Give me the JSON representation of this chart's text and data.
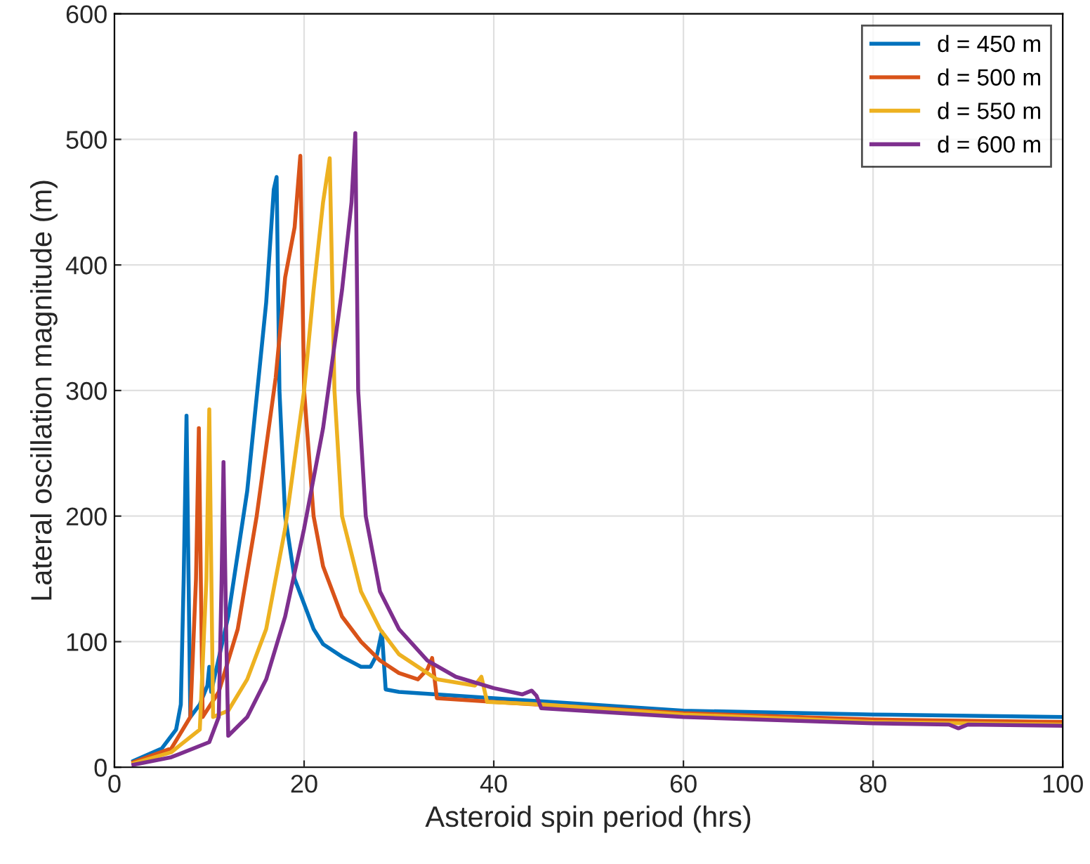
{
  "chart_data": {
    "type": "line",
    "xlabel": "Asteroid spin period (hrs)",
    "ylabel": "Lateral oscillation magnitude (m)",
    "xlim": [
      0,
      100
    ],
    "ylim": [
      0,
      600
    ],
    "xticks": [
      0,
      20,
      40,
      60,
      80,
      100
    ],
    "yticks": [
      0,
      100,
      200,
      300,
      400,
      500,
      600
    ],
    "grid": true,
    "legend": "top right",
    "marker": "none",
    "line_style": "solid",
    "series": [
      {
        "name": "d = 450 m",
        "color": "#0072bd",
        "x": [
          2,
          5,
          6.5,
          7,
          7.3,
          7.6,
          8,
          9,
          9.8,
          10,
          10.2,
          12,
          14,
          16,
          16.8,
          17.1,
          17.4,
          18,
          19,
          20,
          21,
          22,
          24,
          26,
          27,
          27.7,
          28.2,
          28.6,
          30,
          40,
          60,
          80,
          100
        ],
        "values": [
          5,
          15,
          30,
          50,
          150,
          280,
          40,
          50,
          65,
          80,
          60,
          120,
          220,
          370,
          460,
          470,
          300,
          200,
          150,
          130,
          110,
          98,
          88,
          80,
          80,
          90,
          108,
          62,
          60,
          55,
          45,
          42,
          40
        ]
      },
      {
        "name": "d = 500 m",
        "color": "#d95319",
        "x": [
          2,
          6,
          8,
          8.6,
          8.9,
          9.3,
          11,
          13,
          15,
          17,
          18,
          19,
          19.6,
          20,
          21,
          22,
          24,
          26,
          28,
          30,
          32,
          33,
          33.5,
          34,
          40,
          60,
          80,
          100
        ],
        "values": [
          4,
          15,
          40,
          150,
          270,
          40,
          60,
          110,
          200,
          310,
          390,
          430,
          487,
          300,
          200,
          160,
          120,
          100,
          85,
          75,
          70,
          78,
          87,
          55,
          52,
          43,
          38,
          36
        ]
      },
      {
        "name": "d = 550 m",
        "color": "#edb120",
        "x": [
          2,
          6,
          9,
          9.7,
          10,
          10.4,
          12,
          14,
          16,
          18,
          20,
          21,
          22,
          22.7,
          23.2,
          24,
          26,
          28,
          30,
          34,
          38,
          38.7,
          39.3,
          45,
          60,
          80,
          100
        ],
        "values": [
          3,
          12,
          30,
          150,
          285,
          40,
          45,
          70,
          110,
          190,
          300,
          380,
          450,
          485,
          300,
          200,
          140,
          110,
          90,
          70,
          65,
          72,
          52,
          50,
          42,
          36,
          34
        ]
      },
      {
        "name": "d = 600 m",
        "color": "#7e2f8e",
        "x": [
          2,
          6,
          10,
          11,
          11.3,
          11.5,
          11.8,
          12,
          14,
          16,
          18,
          20,
          22,
          24,
          25,
          25.4,
          25.7,
          26.5,
          28,
          30,
          33,
          36,
          40,
          43,
          44,
          44.5,
          45,
          60,
          80,
          88,
          89,
          90,
          100
        ],
        "values": [
          2,
          8,
          20,
          40,
          150,
          243,
          100,
          25,
          40,
          70,
          120,
          190,
          270,
          380,
          450,
          505,
          300,
          200,
          140,
          110,
          85,
          72,
          63,
          58,
          61,
          57,
          47,
          40,
          35,
          34,
          31,
          34,
          33
        ]
      }
    ]
  }
}
